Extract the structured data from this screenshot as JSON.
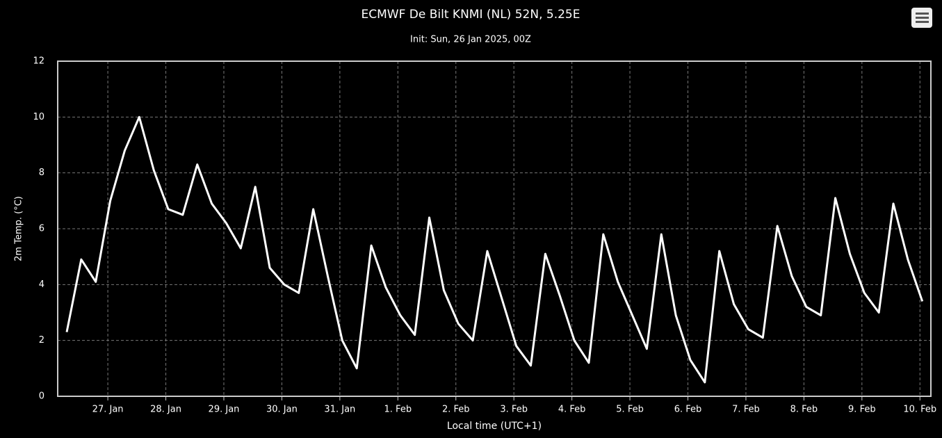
{
  "chart_data": {
    "type": "line",
    "title": "ECMWF De Bilt KNMI (NL) 52N, 5.25E",
    "subtitle": "Init: Sun, 26 Jan 2025, 00Z",
    "y_label": "2m Temp. (°C)",
    "x_label": "Local time (UTC+1)",
    "categories": [
      null,
      null,
      null,
      "27. Jan",
      null,
      null,
      null,
      "28. Jan",
      null,
      null,
      null,
      "29. Jan",
      null,
      null,
      null,
      "30. Jan",
      null,
      null,
      null,
      "31. Jan",
      null,
      null,
      null,
      "1. Feb",
      null,
      null,
      null,
      "2. Feb",
      null,
      null,
      null,
      "3. Feb",
      null,
      null,
      null,
      "4. Feb",
      null,
      null,
      null,
      "5. Feb",
      null,
      null,
      null,
      "6. Feb",
      null,
      null,
      null,
      "7. Feb",
      null,
      null,
      null,
      "8. Feb",
      null,
      null,
      null,
      "9. Feb",
      null,
      null,
      null,
      "10. Feb"
    ],
    "series": [
      {
        "name": "2m Temp.",
        "color": "#ffffff",
        "values": [
          2.3,
          4.9,
          4.1,
          7.0,
          8.8,
          10.0,
          8.1,
          6.7,
          6.5,
          8.3,
          6.9,
          6.2,
          5.3,
          7.5,
          4.6,
          4.0,
          3.7,
          6.7,
          4.3,
          2.0,
          1.0,
          5.4,
          3.9,
          2.9,
          2.2,
          6.4,
          3.8,
          2.6,
          2.0,
          5.2,
          3.5,
          1.8,
          1.1,
          5.1,
          3.6,
          2.0,
          1.2,
          5.8,
          4.1,
          2.9,
          1.7,
          5.8,
          2.9,
          1.3,
          0.5,
          5.2,
          3.3,
          2.4,
          2.1,
          6.1,
          4.3,
          3.2,
          2.9,
          7.1,
          5.1,
          3.7,
          3.0,
          6.9,
          4.9,
          3.4
        ]
      }
    ],
    "ylim": [
      0,
      12
    ],
    "yticks": [
      0,
      2,
      4,
      6,
      8,
      10,
      12
    ],
    "grid": true
  }
}
